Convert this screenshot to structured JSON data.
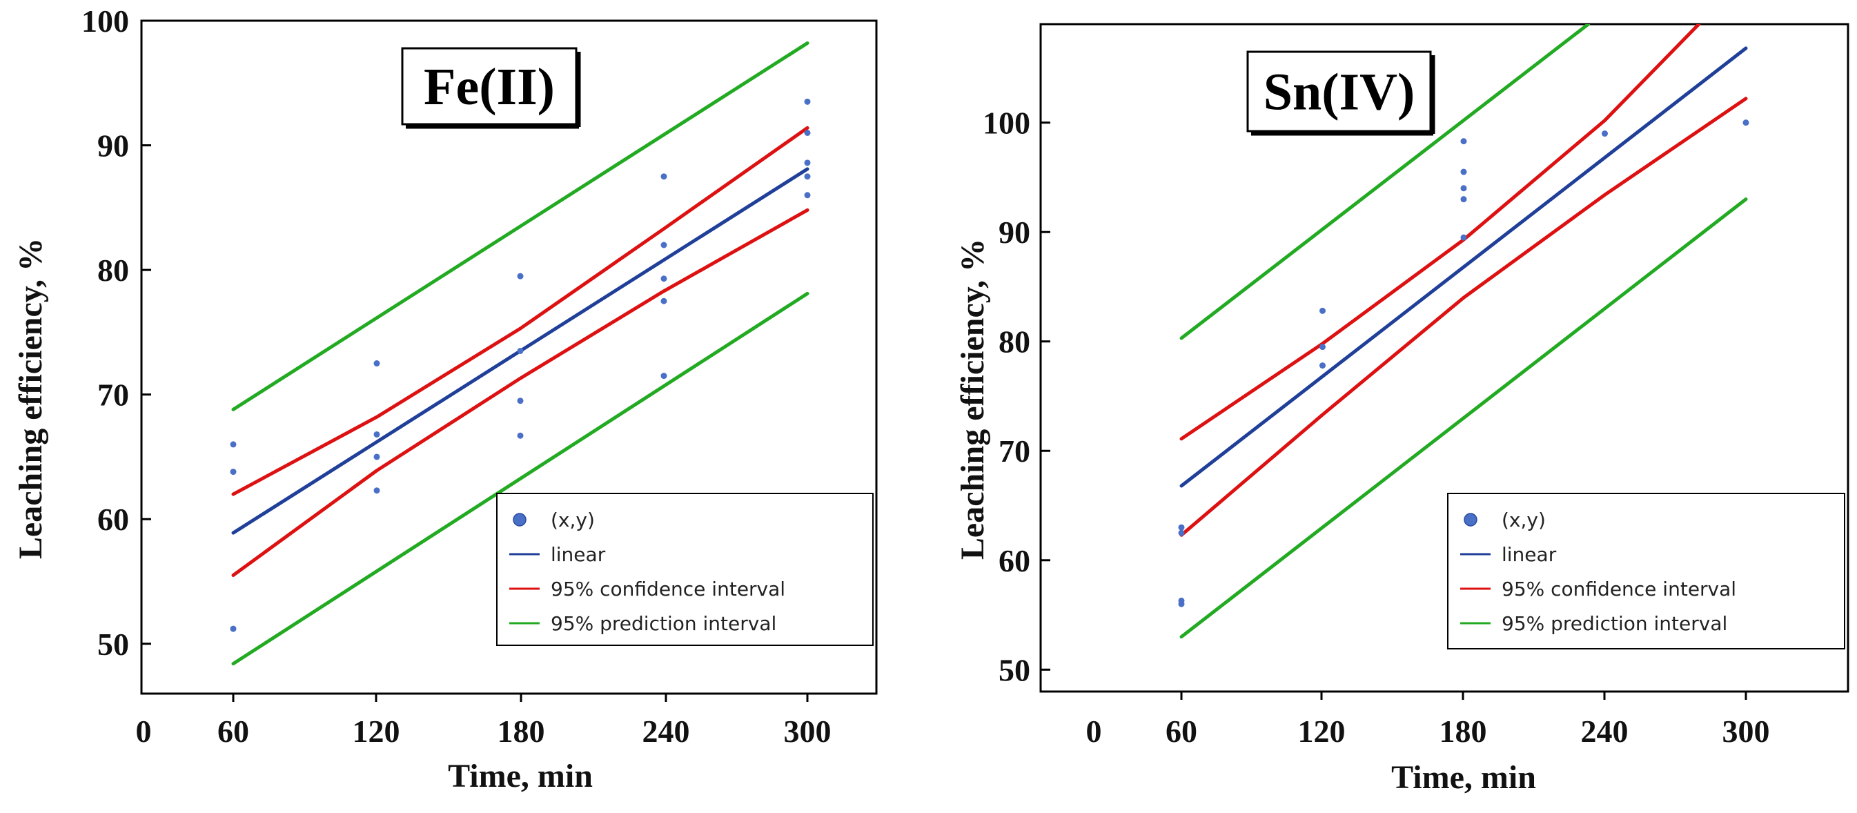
{
  "chart_data": [
    {
      "type": "scatter",
      "title": "Fe(II)",
      "xlabel": "Time, min",
      "ylabel": "Leaching efficiency, %",
      "xlim": [
        0,
        330
      ],
      "ylim": [
        46,
        100
      ],
      "x_ticks": [
        0,
        60,
        120,
        180,
        240,
        300
      ],
      "x_tick_labels": [
        "0",
        "60",
        "120",
        "180",
        "240",
        "300"
      ],
      "y_ticks": [
        50,
        60,
        70,
        80,
        90,
        100
      ],
      "y_tick_labels": [
        "50",
        "60",
        "70",
        "80",
        "90",
        "100"
      ],
      "points": [
        {
          "x": 60,
          "y": 66.0
        },
        {
          "x": 60,
          "y": 63.8
        },
        {
          "x": 60,
          "y": 51.2
        },
        {
          "x": 120,
          "y": 72.5
        },
        {
          "x": 120,
          "y": 66.8
        },
        {
          "x": 120,
          "y": 65.0
        },
        {
          "x": 120,
          "y": 62.3
        },
        {
          "x": 180,
          "y": 79.5
        },
        {
          "x": 180,
          "y": 73.5
        },
        {
          "x": 180,
          "y": 69.5
        },
        {
          "x": 180,
          "y": 66.7
        },
        {
          "x": 240,
          "y": 87.5
        },
        {
          "x": 240,
          "y": 82.0
        },
        {
          "x": 240,
          "y": 79.3
        },
        {
          "x": 240,
          "y": 77.5
        },
        {
          "x": 240,
          "y": 71.5
        },
        {
          "x": 300,
          "y": 93.5
        },
        {
          "x": 300,
          "y": 91.0
        },
        {
          "x": 300,
          "y": 88.6
        },
        {
          "x": 300,
          "y": 87.5
        },
        {
          "x": 300,
          "y": 86.0
        }
      ],
      "series": [
        {
          "name": "linear",
          "color": "#1f3f99",
          "x": [
            60,
            120,
            180,
            240,
            300
          ],
          "y": [
            58.9,
            66.2,
            73.5,
            80.8,
            88.1
          ]
        },
        {
          "name": "95% confidence interval",
          "color": "#dd1111",
          "x": [
            60,
            120,
            180,
            240,
            300
          ],
          "y": [
            62.0,
            68.2,
            75.3,
            83.3,
            91.4
          ]
        },
        {
          "name": "95% confidence interval",
          "color": "#dd1111",
          "x": [
            60,
            120,
            180,
            240,
            300
          ],
          "y": [
            55.5,
            63.9,
            71.3,
            78.3,
            84.8
          ]
        },
        {
          "name": "95% prediction interval",
          "color": "#22aa22",
          "x": [
            60,
            300
          ],
          "y": [
            68.8,
            98.2
          ]
        },
        {
          "name": "95% prediction interval",
          "color": "#22aa22",
          "x": [
            60,
            300
          ],
          "y": [
            48.4,
            78.1
          ]
        }
      ],
      "legend": [
        {
          "label": "(x,y)",
          "kind": "point",
          "color": "#4a6fc7"
        },
        {
          "label": "linear",
          "kind": "line",
          "color": "#1f3f99"
        },
        {
          "label": "95% confidence interval",
          "kind": "line",
          "color": "#dd1111"
        },
        {
          "label": "95% prediction interval",
          "kind": "line",
          "color": "#22aa22"
        }
      ],
      "legend_position": "bottom-right"
    },
    {
      "type": "scatter",
      "title": "Sn(IV)",
      "xlabel": "Time, min",
      "ylabel": "Leaching efficiency, %",
      "xlim": [
        0,
        330
      ],
      "ylim": [
        48,
        109
      ],
      "x_ticks": [
        0,
        60,
        120,
        180,
        240,
        300
      ],
      "x_tick_labels": [
        "0",
        "60",
        "120",
        "180",
        "240",
        "300"
      ],
      "y_ticks": [
        50,
        60,
        70,
        80,
        90,
        100
      ],
      "y_tick_labels": [
        "50",
        "60",
        "70",
        "80",
        "90",
        "100"
      ],
      "points": [
        {
          "x": 60,
          "y": 63.0
        },
        {
          "x": 60,
          "y": 62.5
        },
        {
          "x": 60,
          "y": 56.3
        },
        {
          "x": 60,
          "y": 56.0
        },
        {
          "x": 120,
          "y": 82.8
        },
        {
          "x": 120,
          "y": 79.5
        },
        {
          "x": 120,
          "y": 77.8
        },
        {
          "x": 180,
          "y": 98.3
        },
        {
          "x": 180,
          "y": 95.5
        },
        {
          "x": 180,
          "y": 94.0
        },
        {
          "x": 180,
          "y": 93.0
        },
        {
          "x": 180,
          "y": 89.5
        },
        {
          "x": 240,
          "y": 99.0
        },
        {
          "x": 300,
          "y": 100.0
        }
      ],
      "series": [
        {
          "name": "linear",
          "color": "#1f3f99",
          "x": [
            60,
            120,
            180,
            240,
            300
          ],
          "y": [
            66.8,
            76.8,
            86.8,
            96.8,
            106.8
          ]
        },
        {
          "name": "95% confidence interval",
          "color": "#dd1111",
          "x": [
            60,
            120,
            180,
            240,
            280
          ],
          "y": [
            71.1,
            79.8,
            89.3,
            100.2,
            109.0
          ]
        },
        {
          "name": "95% confidence interval",
          "color": "#dd1111",
          "x": [
            60,
            120,
            180,
            240,
            300
          ],
          "y": [
            62.3,
            73.3,
            84.0,
            93.4,
            102.2
          ]
        },
        {
          "name": "95% prediction interval",
          "color": "#22aa22",
          "x": [
            60,
            233
          ],
          "y": [
            80.3,
            109.0
          ]
        },
        {
          "name": "95% prediction interval",
          "color": "#22aa22",
          "x": [
            60,
            300
          ],
          "y": [
            53.0,
            93.0
          ]
        }
      ],
      "legend": [
        {
          "label": "(x,y)",
          "kind": "point",
          "color": "#4a6fc7"
        },
        {
          "label": "linear",
          "kind": "line",
          "color": "#1f3f99"
        },
        {
          "label": "95% confidence interval",
          "kind": "line",
          "color": "#dd1111"
        },
        {
          "label": "95% prediction interval",
          "kind": "line",
          "color": "#22aa22"
        }
      ],
      "legend_position": "bottom-right"
    }
  ]
}
